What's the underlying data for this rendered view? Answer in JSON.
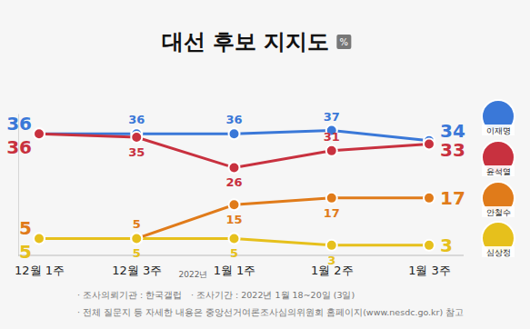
{
  "chart_data": {
    "type": "line",
    "title": "대선 후보 지지도",
    "ylabel": "%",
    "categories": [
      "12월 1주",
      "12월 3주",
      "1월 1주",
      "1월 2주",
      "1월 3주"
    ],
    "annotations": [
      "2022년"
    ],
    "caption": [
      "· 조사의뢰기관 : 한국갤럽",
      "· 조사기간 : 2022년 1월 18~20일 (3일)",
      "· 전체 질문지 등 자세한 내용은 중앙선거여론조사심의위원회 홈페이지(www.nesdc.go.kr) 참고"
    ],
    "series": [
      {
        "name": "이재명",
        "color": "#3a78d8",
        "values": [
          36,
          36,
          36,
          37,
          34
        ]
      },
      {
        "name": "윤석열",
        "color": "#c8313f",
        "values": [
          36,
          35,
          26,
          31,
          33
        ]
      },
      {
        "name": "안철수",
        "color": "#e07b1a",
        "values": [
          5,
          5,
          15,
          17,
          17
        ]
      },
      {
        "name": "심상정",
        "color": "#e6c01c",
        "values": [
          5,
          5,
          5,
          3,
          3
        ]
      }
    ],
    "ylim": [
      0,
      42
    ],
    "yticks": [],
    "grid": false,
    "data_labels": true,
    "tick_labels": "x",
    "marker": "circle",
    "line_style": "solid"
  }
}
